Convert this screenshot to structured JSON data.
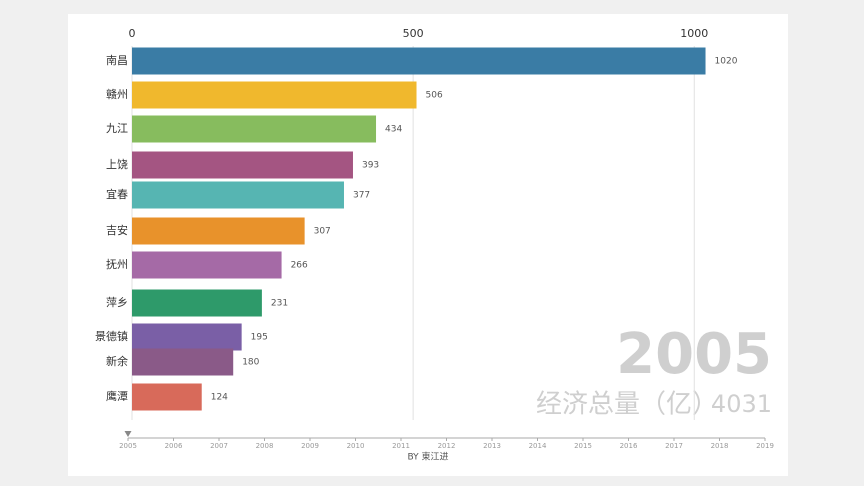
{
  "chart_data": {
    "type": "bar",
    "orientation": "horizontal",
    "categories": [
      "南昌",
      "赣州",
      "九江",
      "上饶",
      "宜春",
      "吉安",
      "抚州",
      "萍乡",
      "景德镇",
      "新余",
      "鹰潭"
    ],
    "values": [
      1020,
      506,
      434,
      393,
      377,
      307,
      266,
      231,
      195,
      180,
      124
    ],
    "colors": [
      "#3a7ca5",
      "#f0b82d",
      "#87bc5e",
      "#a45582",
      "#56b5b2",
      "#e8922b",
      "#a56aa6",
      "#2e9a6a",
      "#7a5fa6",
      "#8a5a88",
      "#d86a5a"
    ],
    "xlim": [
      0,
      1140
    ],
    "xticks": [
      0,
      500,
      1000
    ],
    "grid": true,
    "timeline": {
      "years": [
        2005,
        2006,
        2007,
        2008,
        2009,
        2010,
        2011,
        2012,
        2013,
        2014,
        2015,
        2016,
        2017,
        2018,
        2019
      ],
      "current": 2005
    },
    "total_label": "经济总量（亿）",
    "total": 4031,
    "credit": "BY 東江进"
  }
}
